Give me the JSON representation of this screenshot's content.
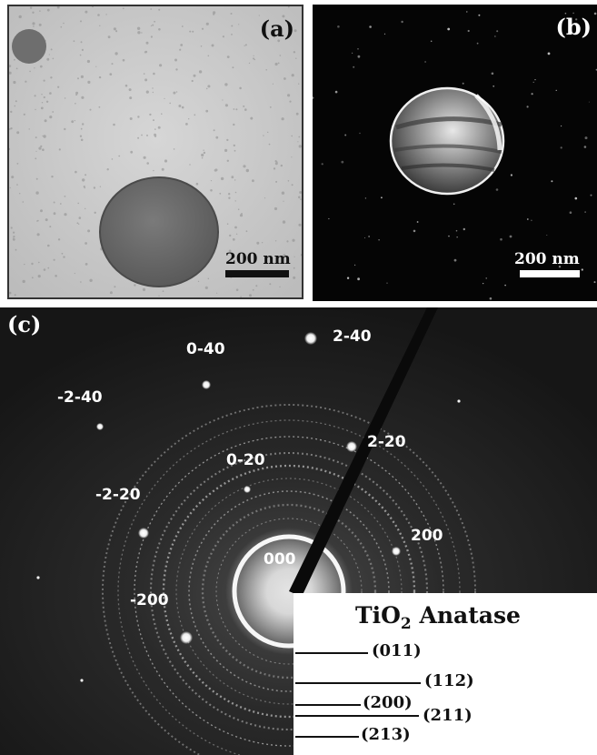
{
  "panels": {
    "a": {
      "label": "(a)",
      "scale_label": "200 nm"
    },
    "b": {
      "label": "(b)",
      "scale_label": "200 nm"
    },
    "c": {
      "label": "(c)",
      "spots": [
        "2-40",
        "0-40",
        "-2-40",
        "2-20",
        "0-20",
        "-2-20",
        "200",
        "000",
        "-200"
      ],
      "legend": {
        "title_main": "TiO",
        "title_sub": "2",
        "title_rest": " Anatase",
        "rings": [
          "(011)",
          "(112)",
          "(200)",
          "(211)",
          "(213)"
        ]
      }
    }
  },
  "colors": {
    "bright_field_bg": "#c9c9c9",
    "dark_field_bg": "#050505",
    "diffraction_bg": "#1c1c1c"
  }
}
